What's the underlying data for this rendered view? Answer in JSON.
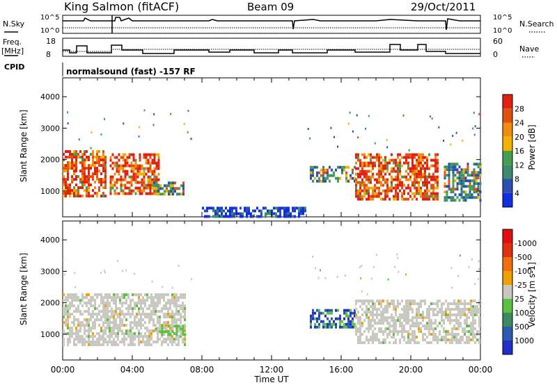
{
  "header": {
    "station": "King Salmon (fitACF)",
    "beam": "Beam 09",
    "date": "29/Oct/2011"
  },
  "side_labels": {
    "nsky": "N.Sky",
    "freq_line1": "Freq.",
    "freq_line2": "[MHz]",
    "cpid": "CPID",
    "nsearch": "N.Search",
    "nave": "Nave"
  },
  "cpid_text": "normalsound (fast) -157 RF",
  "axes": {
    "xlabel": "Time UT",
    "ylabel": "Slant Range [km]",
    "xticks": [
      "00:00",
      "04:00",
      "08:00",
      "12:00",
      "16:00",
      "20:00",
      "00:00"
    ],
    "yticks": [
      "1000",
      "2000",
      "3000",
      "4000"
    ],
    "nsky_ticks": [
      "10^5",
      "10^0"
    ],
    "freq_ticks": [
      "18",
      "8"
    ],
    "nave_ticks": [
      "60",
      "0"
    ]
  },
  "colorbars": {
    "power": {
      "label": "Power [dB]",
      "ticks": [
        "4",
        "8",
        "12",
        "16",
        "20",
        "24",
        "28"
      ],
      "colors": [
        "#1030e0",
        "#2a50b0",
        "#3c8a70",
        "#44a050",
        "#f0b400",
        "#f08c10",
        "#e05010",
        "#e02010"
      ]
    },
    "velocity": {
      "label": "Velocity [m s-1]",
      "ticks": [
        "1000",
        "500",
        "100",
        "25",
        "-25",
        "-100",
        "-500",
        "-1000"
      ],
      "colors": [
        "#2030c8",
        "#2c5ab0",
        "#3c8a60",
        "#5cc040",
        "#c8c8c0",
        "#f0a000",
        "#f07010",
        "#e03010",
        "#e01010"
      ]
    }
  },
  "chart_data": [
    {
      "type": "heatmap",
      "title": "Power",
      "xlabel": "Time UT",
      "ylabel": "Slant Range [km]",
      "xlim": [
        0,
        24
      ],
      "ylim": [
        180,
        4600
      ],
      "regions": [
        {
          "t0": 0.0,
          "t1": 2.5,
          "r0": 800,
          "r1": 2300,
          "level": "high"
        },
        {
          "t0": 2.7,
          "t1": 5.5,
          "r0": 900,
          "r1": 2200,
          "level": "high"
        },
        {
          "t0": 5.2,
          "t1": 7.0,
          "r0": 900,
          "r1": 1300,
          "level": "medium"
        },
        {
          "t0": 14.2,
          "t1": 16.8,
          "r0": 1300,
          "r1": 1800,
          "level": "medium"
        },
        {
          "t0": 16.8,
          "t1": 21.5,
          "r0": 700,
          "r1": 2200,
          "level": "high"
        },
        {
          "t0": 21.9,
          "t1": 24.0,
          "r0": 700,
          "r1": 1900,
          "level": "medium"
        },
        {
          "t0": 8.0,
          "t1": 14.0,
          "r0": 200,
          "r1": 500,
          "level": "low"
        }
      ]
    },
    {
      "type": "heatmap",
      "title": "Velocity",
      "xlabel": "Time UT",
      "ylabel": "Slant Range [km]",
      "xlim": [
        0,
        24
      ],
      "ylim": [
        180,
        4600
      ],
      "regions": [
        {
          "t0": 0.0,
          "t1": 7.0,
          "r0": 700,
          "r1": 2300,
          "level": "near-zero"
        },
        {
          "t0": 5.3,
          "t1": 7.0,
          "r0": 1000,
          "r1": 1300,
          "level": "+100"
        },
        {
          "t0": 14.2,
          "t1": 16.8,
          "r0": 1200,
          "r1": 1800,
          "level": "+500"
        },
        {
          "t0": 16.8,
          "t1": 24.0,
          "r0": 700,
          "r1": 2100,
          "level": "near-zero"
        }
      ]
    }
  ]
}
